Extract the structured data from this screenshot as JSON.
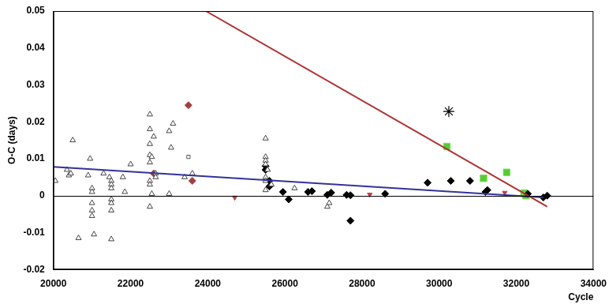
{
  "chart_data": {
    "type": "scatter",
    "x_label": "Cycle",
    "y_label": "O-C (days)",
    "xlim": [
      20000,
      34000
    ],
    "xticks": [
      20000,
      22000,
      24000,
      26000,
      28000,
      30000,
      32000,
      34000
    ],
    "ylim": [
      -0.02,
      0.05
    ],
    "yticks": [
      -0.02,
      -0.01,
      0,
      0.01,
      0.02,
      0.03,
      0.04,
      0.05
    ],
    "grid": false,
    "series": [
      {
        "color": "#444444",
        "marker": "open_triangle",
        "x": [
          20050,
          20350,
          20400,
          20450,
          20500,
          20650,
          20900,
          20950,
          21000,
          21000,
          21000,
          21000,
          21000,
          21050,
          21300,
          21450,
          21500,
          21500,
          21500,
          21500,
          21500,
          21500,
          21500,
          21800,
          21850,
          22000,
          22500,
          22500,
          22500,
          22500,
          22550,
          22500,
          22500,
          22500,
          22500,
          22550,
          22600,
          22650,
          22650,
          23000,
          23100,
          23050,
          23000,
          23400,
          23600,
          25500,
          25500,
          25500,
          25500,
          25550,
          25500,
          25500,
          25500,
          25650,
          26250,
          27100,
          27150
        ],
        "values": [
          0.004,
          0.007,
          0.0055,
          0.006,
          0.015,
          -0.0115,
          0.0055,
          0.01,
          0.002,
          0.001,
          -0.002,
          -0.004,
          -0.0055,
          -0.0105,
          0.006,
          0.005,
          0.004,
          0.003,
          0.002,
          -0.001,
          -0.002,
          -0.004,
          -0.0118,
          0.005,
          0.001,
          0.0085,
          0.022,
          0.018,
          0.014,
          0.011,
          0.0105,
          0.009,
          0.004,
          0.003,
          -0.003,
          0.0005,
          0.016,
          0.006,
          0.005,
          0.0175,
          0.0195,
          0.013,
          0.0005,
          0.005,
          0.006,
          0.0155,
          0.0105,
          0.0095,
          0.0085,
          0.007,
          0.005,
          0.004,
          0.0015,
          0.003,
          0.002,
          -0.003,
          -0.002
        ]
      },
      {
        "color": "#000000",
        "marker": "diamond",
        "x": [
          25500,
          25500,
          25600,
          25600,
          25950,
          26100,
          26600,
          26700,
          27100,
          27200,
          27600,
          27700,
          27700,
          28600,
          29700,
          30300,
          30800,
          31200,
          31250,
          32300,
          32700,
          32800
        ],
        "values": [
          0.008,
          0.007,
          0.004,
          0.0025,
          0.001,
          -0.001,
          0.001,
          0.0012,
          0.0002,
          0.0008,
          0.0002,
          -0.0068,
          0.0001,
          0.0005,
          0.0035,
          0.004,
          0.004,
          0.001,
          0.0015,
          0.0005,
          -0.0005,
          0.0
        ]
      },
      {
        "color": "#a04040",
        "marker": "diamond",
        "x": [
          22600,
          23500,
          23600
        ],
        "values": [
          0.006,
          0.0245,
          0.004
        ]
      },
      {
        "color": "#c04040",
        "marker": "down_triangle",
        "x": [
          24700,
          28200,
          31700
        ],
        "values": [
          -0.0005,
          0.0003,
          0.0008
        ]
      },
      {
        "color": "#555555",
        "marker": "open_square",
        "x": [
          23500
        ],
        "values": [
          0.0105
        ]
      },
      {
        "color": "#55cc33",
        "marker": "square",
        "x": [
          30200,
          31150,
          31750,
          32200,
          32250
        ],
        "values": [
          0.0133,
          0.0047,
          0.0063,
          0.0007,
          0.0
        ]
      },
      {
        "color": "#000000",
        "marker": "star",
        "x": [
          30250
        ],
        "values": [
          0.0228
        ]
      },
      {
        "color": "#b03030",
        "type": "line",
        "marker": "none",
        "x": [
          23950,
          32800
        ],
        "values": [
          0.05,
          -0.003
        ]
      },
      {
        "color": "#333399",
        "type": "line",
        "marker": "none",
        "x": [
          20000,
          32700
        ],
        "values": [
          0.0078,
          -0.0005
        ]
      }
    ]
  }
}
